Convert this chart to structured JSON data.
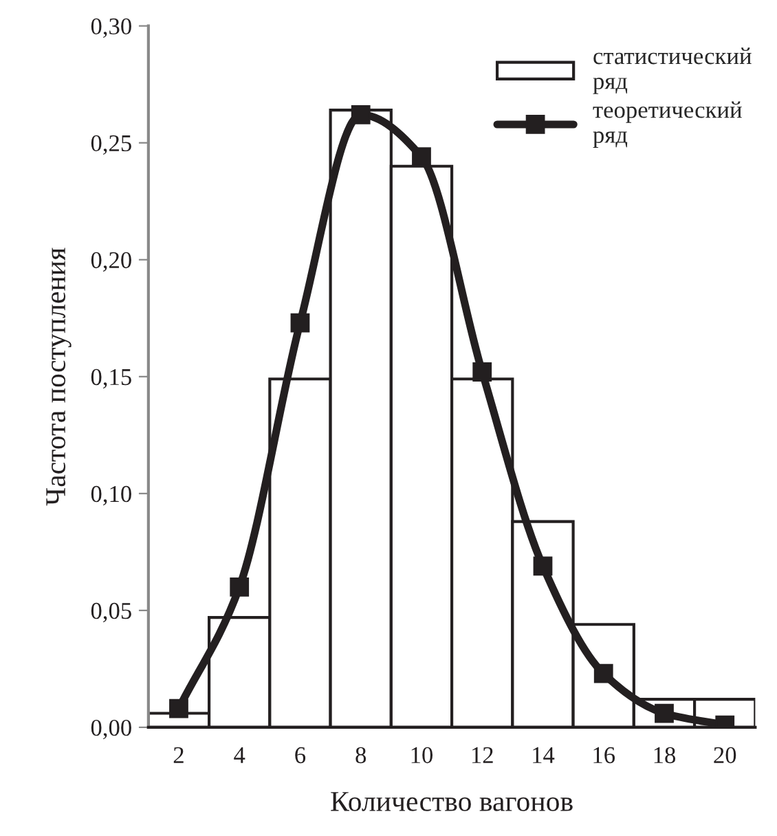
{
  "chart_data": {
    "type": "bar",
    "xlabel": "Количество вагонов",
    "ylabel": "Частота поступления",
    "categories": [
      "2",
      "4",
      "6",
      "8",
      "10",
      "12",
      "14",
      "16",
      "18",
      "20"
    ],
    "series": [
      {
        "name": "статистический\nряд",
        "type": "bar",
        "color": "#ffffff",
        "values": [
          0.006,
          0.047,
          0.149,
          0.264,
          0.24,
          0.149,
          0.088,
          0.044,
          0.012,
          0.012
        ]
      },
      {
        "name": "теоретический\nряд",
        "type": "line",
        "color": "#231f20",
        "values": [
          0.008,
          0.06,
          0.173,
          0.262,
          0.244,
          0.152,
          0.069,
          0.023,
          0.006,
          0.001
        ],
        "marker": "square"
      }
    ],
    "ylim": [
      0,
      0.3
    ],
    "yticks": [
      {
        "value": 0,
        "label": "0,00"
      },
      {
        "value": 0.05,
        "label": "0,05"
      },
      {
        "value": 0.1,
        "label": "0,10"
      },
      {
        "value": 0.15,
        "label": "0,15"
      },
      {
        "value": 0.2,
        "label": "0,20"
      },
      {
        "value": 0.25,
        "label": "0,25"
      },
      {
        "value": 0.3,
        "label": "0,30"
      }
    ],
    "legend": "top right",
    "grid": false
  }
}
